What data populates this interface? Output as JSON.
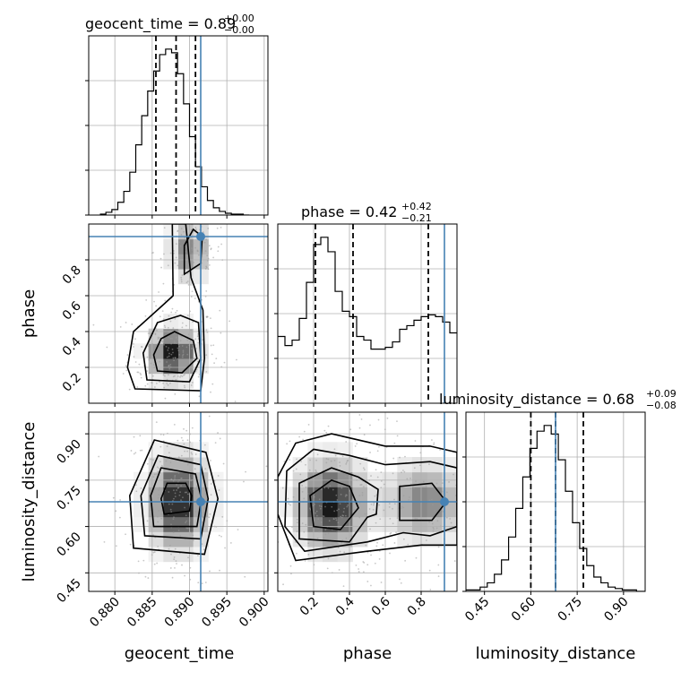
{
  "chart_data": {
    "type": "corner",
    "parameters": [
      "geocent_time",
      "phase",
      "luminosity_distance"
    ],
    "axis_labels": {
      "geocent_time": "geocent_time",
      "phase": "phase",
      "luminosity_distance": "luminosity_distance"
    },
    "ranges": {
      "geocent_time": [
        0.8765,
        0.9005
      ],
      "phase": [
        0.0,
        1.0
      ],
      "luminosity_distance": [
        0.39,
        0.97
      ]
    },
    "ticks": {
      "geocent_time": [
        0.88,
        0.885,
        0.89,
        0.895,
        0.9
      ],
      "phase": [
        0.2,
        0.4,
        0.6,
        0.8
      ],
      "luminosity_distance": [
        0.45,
        0.6,
        0.75,
        0.9
      ]
    },
    "tick_labels": {
      "geocent_time": [
        "0.880",
        "0.885",
        "0.890",
        "0.895",
        "0.900"
      ],
      "phase": [
        "0.2",
        "0.4",
        "0.6",
        "0.8"
      ],
      "luminosity_distance": [
        "0.45",
        "0.60",
        "0.75",
        "0.90"
      ]
    },
    "titles": {
      "geocent_time": {
        "text": "geocent_time = 0.89",
        "plus": "+0.00",
        "minus": "−0.00"
      },
      "phase": {
        "text": "phase = 0.42",
        "plus": "+0.42",
        "minus": "−0.21"
      },
      "luminosity_distance": {
        "text": "luminosity_distance = 0.68",
        "plus": "+0.09",
        "minus": "−0.08"
      }
    },
    "truths": {
      "geocent_time": 0.8915,
      "phase": 0.93,
      "luminosity_distance": 0.68
    },
    "quantiles": {
      "geocent_time": [
        0.8855,
        0.8882,
        0.8908
      ],
      "phase": [
        0.21,
        0.42,
        0.84
      ],
      "luminosity_distance": [
        0.6,
        0.68,
        0.77
      ]
    },
    "histograms": {
      "geocent_time": {
        "edges": [
          0.878,
          0.8788,
          0.8796,
          0.8804,
          0.8812,
          0.882,
          0.8828,
          0.8836,
          0.8844,
          0.8852,
          0.886,
          0.8868,
          0.8876,
          0.8884,
          0.8892,
          0.89,
          0.8908,
          0.8916,
          0.8924,
          0.8932,
          0.894,
          0.8948,
          0.8956,
          0.8964,
          0.8972,
          0.898
        ],
        "counts": [
          1,
          3,
          6,
          14,
          26,
          47,
          77,
          109,
          136,
          158,
          176,
          182,
          178,
          155,
          122,
          86,
          53,
          31,
          16,
          8,
          4,
          2,
          1,
          1,
          0
        ]
      },
      "phase": {
        "edges": [
          0.0,
          0.04,
          0.08,
          0.12,
          0.16,
          0.2,
          0.24,
          0.28,
          0.32,
          0.36,
          0.4,
          0.44,
          0.48,
          0.52,
          0.56,
          0.6,
          0.64,
          0.68,
          0.72,
          0.76,
          0.8,
          0.84,
          0.88,
          0.92,
          0.96,
          1.0
        ],
        "counts": [
          37,
          32,
          35,
          47,
          67,
          88,
          92,
          84,
          62,
          51,
          48,
          37,
          35,
          30,
          30,
          31,
          34,
          41,
          43,
          46,
          48,
          49,
          48,
          45,
          39
        ]
      },
      "luminosity_distance": {
        "edges": [
          0.39,
          0.413,
          0.436,
          0.459,
          0.482,
          0.505,
          0.528,
          0.551,
          0.574,
          0.597,
          0.62,
          0.643,
          0.666,
          0.689,
          0.712,
          0.735,
          0.758,
          0.781,
          0.804,
          0.827,
          0.85,
          0.873,
          0.896,
          0.919,
          0.942,
          0.97
        ],
        "counts": [
          1,
          1,
          3,
          6,
          12,
          22,
          38,
          58,
          80,
          100,
          112,
          116,
          110,
          92,
          70,
          48,
          30,
          18,
          10,
          6,
          3,
          2,
          1,
          1,
          0
        ]
      }
    },
    "contours_2d": [
      {
        "x": "geocent_time",
        "y": "phase",
        "levels": [
          [
            [
              0.8857,
              0.18
            ],
            [
              0.889,
              0.17
            ],
            [
              0.891,
              0.25
            ],
            [
              0.8905,
              0.35
            ],
            [
              0.888,
              0.4
            ],
            [
              0.8862,
              0.36
            ],
            [
              0.8852,
              0.27
            ]
          ],
          [
            [
              0.8843,
              0.13
            ],
            [
              0.89,
              0.12
            ],
            [
              0.8915,
              0.25
            ],
            [
              0.8912,
              0.45
            ],
            [
              0.8888,
              0.49
            ],
            [
              0.8857,
              0.45
            ],
            [
              0.8838,
              0.28
            ]
          ],
          [
            [
              0.8827,
              0.08
            ],
            [
              0.8915,
              0.07
            ],
            [
              0.892,
              0.25
            ],
            [
              0.8918,
              0.52
            ],
            [
              0.8902,
              0.7
            ],
            [
              0.8895,
              1.0
            ],
            [
              0.8877,
              1.0
            ],
            [
              0.8878,
              0.6
            ],
            [
              0.8865,
              0.55
            ],
            [
              0.8825,
              0.4
            ],
            [
              0.8817,
              0.2
            ]
          ]
        ],
        "upper_island": [
          [
            0.8893,
            0.72
          ],
          [
            0.8915,
            0.78
          ],
          [
            0.8917,
            0.93
          ],
          [
            0.8905,
            0.97
          ],
          [
            0.8893,
            0.88
          ]
        ]
      },
      {
        "x": "geocent_time",
        "y": "luminosity_distance",
        "levels": [
          [
            [
              0.8866,
              0.64
            ],
            [
              0.89,
              0.65
            ],
            [
              0.8903,
              0.7
            ],
            [
              0.8895,
              0.74
            ],
            [
              0.887,
              0.74
            ],
            [
              0.8862,
              0.69
            ]
          ],
          [
            [
              0.8852,
              0.6
            ],
            [
              0.891,
              0.6
            ],
            [
              0.8916,
              0.69
            ],
            [
              0.8908,
              0.77
            ],
            [
              0.8862,
              0.79
            ],
            [
              0.8848,
              0.7
            ]
          ],
          [
            [
              0.884,
              0.57
            ],
            [
              0.8915,
              0.56
            ],
            [
              0.8925,
              0.69
            ],
            [
              0.8915,
              0.8
            ],
            [
              0.8858,
              0.83
            ],
            [
              0.8835,
              0.7
            ]
          ],
          [
            [
              0.8825,
              0.53
            ],
            [
              0.892,
              0.51
            ],
            [
              0.8938,
              0.69
            ],
            [
              0.8922,
              0.84
            ],
            [
              0.8853,
              0.88
            ],
            [
              0.882,
              0.7
            ]
          ]
        ]
      },
      {
        "x": "phase",
        "y": "luminosity_distance",
        "levels": [
          [
            [
              0.2,
              0.6
            ],
            [
              0.35,
              0.59
            ],
            [
              0.45,
              0.66
            ],
            [
              0.4,
              0.73
            ],
            [
              0.3,
              0.75
            ],
            [
              0.18,
              0.7
            ]
          ],
          [
            [
              0.12,
              0.56
            ],
            [
              0.4,
              0.55
            ],
            [
              0.5,
              0.63
            ],
            [
              0.55,
              0.64
            ],
            [
              0.56,
              0.72
            ],
            [
              0.45,
              0.76
            ],
            [
              0.3,
              0.79
            ],
            [
              0.12,
              0.74
            ]
          ],
          [
            [
              0.04,
              0.6
            ],
            [
              0.15,
              0.52
            ],
            [
              0.5,
              0.55
            ],
            [
              0.7,
              0.58
            ],
            [
              0.85,
              0.57
            ],
            [
              1.0,
              0.6
            ],
            [
              1.0,
              0.79
            ],
            [
              0.85,
              0.81
            ],
            [
              0.6,
              0.8
            ],
            [
              0.4,
              0.83
            ],
            [
              0.2,
              0.85
            ],
            [
              0.05,
              0.78
            ]
          ],
          [
            [
              0.0,
              0.64
            ],
            [
              0.1,
              0.49
            ],
            [
              0.5,
              0.52
            ],
            [
              0.8,
              0.54
            ],
            [
              1.0,
              0.54
            ],
            [
              1.0,
              0.84
            ],
            [
              0.85,
              0.86
            ],
            [
              0.6,
              0.86
            ],
            [
              0.3,
              0.9
            ],
            [
              0.1,
              0.87
            ],
            [
              0.0,
              0.76
            ]
          ]
        ],
        "right_island": [
          [
            0.68,
            0.62
          ],
          [
            0.86,
            0.62
          ],
          [
            0.94,
            0.68
          ],
          [
            0.86,
            0.74
          ],
          [
            0.68,
            0.73
          ]
        ]
      }
    ],
    "density_2d": [
      {
        "x": "geocent_time",
        "y": "phase",
        "blobs": [
          {
            "cx": 0.8878,
            "cy": 0.28,
            "sx": 0.0018,
            "sy": 0.08,
            "amp": 1.0
          },
          {
            "cx": 0.89,
            "cy": 0.85,
            "sx": 0.0014,
            "sy": 0.09,
            "amp": 0.55
          }
        ]
      },
      {
        "x": "geocent_time",
        "y": "luminosity_distance",
        "blobs": [
          {
            "cx": 0.8885,
            "cy": 0.68,
            "sx": 0.0022,
            "sy": 0.085,
            "amp": 1.0
          }
        ]
      },
      {
        "x": "phase",
        "y": "luminosity_distance",
        "blobs": [
          {
            "cx": 0.3,
            "cy": 0.67,
            "sx": 0.11,
            "sy": 0.08,
            "amp": 1.0
          },
          {
            "cx": 0.82,
            "cy": 0.68,
            "sx": 0.13,
            "sy": 0.07,
            "amp": 0.55
          }
        ]
      }
    ],
    "grid": true
  }
}
